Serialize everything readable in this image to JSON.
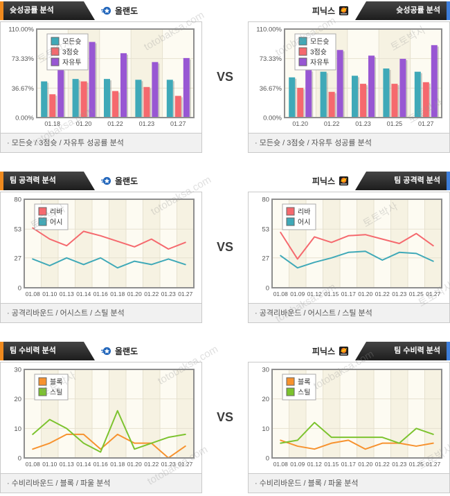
{
  "vs_label": "VS",
  "teams": {
    "left": "올랜도",
    "right": "피닉스"
  },
  "watermarks": [
    "토토박사",
    "totobaksa.com"
  ],
  "colors": {
    "accent_left": "#F08A1E",
    "accent_right": "#3D7EDB",
    "all_shots": "#3FA9B8",
    "three_point": "#F5696E",
    "free_throw": "#9857D3",
    "rebound": "#F5696E",
    "assist": "#3FA9B8",
    "block": "#F7922E",
    "steal": "#7CC32E"
  },
  "rows": [
    {
      "title": "슛성공률 분석",
      "caption": "· 모든슛 / 3점슛 / 자유투 성공률 분석"
    },
    {
      "title": "팀 공격력 분석",
      "caption": "· 공격리바운드 / 어시스트 / 스틸 분석"
    },
    {
      "title": "팀 수비력 분석",
      "caption": "· 수비리바운드 / 블록 / 파울 분석"
    }
  ],
  "chart_data": [
    {
      "type": "bar",
      "title": "올랜도 슛성공률 분석",
      "categories": [
        "01.18",
        "01.20",
        "01.22",
        "01.23",
        "01.27"
      ],
      "series": [
        {
          "name": "모든슛",
          "color": "#3FA9B8",
          "values": [
            45,
            48,
            48,
            47,
            47
          ]
        },
        {
          "name": "3점슛",
          "color": "#F5696E",
          "values": [
            29,
            45,
            33,
            38,
            27
          ]
        },
        {
          "name": "자유투",
          "color": "#9857D3",
          "values": [
            60,
            94,
            80,
            69,
            74
          ]
        }
      ],
      "ylim": [
        0,
        110
      ],
      "yticks": [
        0,
        36.67,
        73.33,
        110
      ],
      "yticklabels": [
        "0.00%",
        "36.67%",
        "73.33%",
        "110.00%"
      ],
      "legend_position": "top-left",
      "grid": true
    },
    {
      "type": "bar",
      "title": "피닉스 슛성공률 분석",
      "categories": [
        "01.20",
        "01.22",
        "01.23",
        "01.25",
        "01.27"
      ],
      "series": [
        {
          "name": "모든슛",
          "color": "#3FA9B8",
          "values": [
            50,
            57,
            52,
            61,
            57
          ]
        },
        {
          "name": "3점슛",
          "color": "#F5696E",
          "values": [
            37,
            32,
            42,
            42,
            44
          ]
        },
        {
          "name": "자유투",
          "color": "#9857D3",
          "values": [
            59,
            84,
            77,
            73,
            90
          ]
        }
      ],
      "ylim": [
        0,
        110
      ],
      "yticks": [
        0,
        36.67,
        73.33,
        110
      ],
      "yticklabels": [
        "0.00%",
        "36.67%",
        "73.33%",
        "110.00%"
      ],
      "legend_position": "top-left",
      "grid": true
    },
    {
      "type": "line",
      "title": "올랜도 팀 공격력 분석",
      "categories": [
        "01.08",
        "01.10",
        "01.13",
        "01.14",
        "01.16",
        "01.18",
        "01.20",
        "01.22",
        "01.23",
        "01.27"
      ],
      "series": [
        {
          "name": "리바",
          "color": "#F5696E",
          "values": [
            54,
            44,
            38,
            51,
            47,
            42,
            37,
            44,
            35,
            41
          ]
        },
        {
          "name": "어시",
          "color": "#3FA9B8",
          "values": [
            26,
            20,
            27,
            21,
            27,
            18,
            24,
            21,
            26,
            21
          ]
        }
      ],
      "ylim": [
        0,
        80
      ],
      "yticks": [
        0,
        27,
        53,
        80
      ],
      "yticklabels": [
        "0",
        "27",
        "53",
        "80"
      ],
      "legend_position": "top-left",
      "grid": true
    },
    {
      "type": "line",
      "title": "피닉스 팀 공격력 분석",
      "categories": [
        "01.08",
        "01.09",
        "01.12",
        "01.15",
        "01.17",
        "01.20",
        "01.22",
        "01.23",
        "01.25",
        "01.27"
      ],
      "series": [
        {
          "name": "리바",
          "color": "#F5696E",
          "values": [
            50,
            26,
            46,
            41,
            47,
            48,
            44,
            40,
            49,
            38
          ]
        },
        {
          "name": "어시",
          "color": "#3FA9B8",
          "values": [
            29,
            18,
            23,
            27,
            32,
            33,
            25,
            32,
            31,
            24
          ]
        }
      ],
      "ylim": [
        0,
        80
      ],
      "yticks": [
        0,
        27,
        53,
        80
      ],
      "yticklabels": [
        "0",
        "27",
        "53",
        "80"
      ],
      "legend_position": "top-left",
      "grid": true
    },
    {
      "type": "line",
      "title": "올랜도 팀 수비력 분석",
      "categories": [
        "01.08",
        "01.10",
        "01.13",
        "01.14",
        "01.16",
        "01.18",
        "01.20",
        "01.22",
        "01.23",
        "01.27"
      ],
      "series": [
        {
          "name": "블록",
          "color": "#F7922E",
          "values": [
            3,
            5,
            8,
            8,
            3,
            8,
            5,
            5,
            0,
            4
          ]
        },
        {
          "name": "스틸",
          "color": "#7CC32E",
          "values": [
            8,
            13,
            10,
            5,
            2,
            16,
            3,
            5,
            7,
            8
          ]
        }
      ],
      "ylim": [
        0,
        30
      ],
      "yticks": [
        0,
        10,
        20,
        30
      ],
      "yticklabels": [
        "0",
        "10",
        "20",
        "30"
      ],
      "legend_position": "top-left",
      "grid": true
    },
    {
      "type": "line",
      "title": "피닉스 팀 수비력 분석",
      "categories": [
        "01.08",
        "01.09",
        "01.12",
        "01.15",
        "01.17",
        "01.20",
        "01.22",
        "01.23",
        "01.25",
        "01.27"
      ],
      "series": [
        {
          "name": "블록",
          "color": "#F7922E",
          "values": [
            6,
            4,
            3,
            5,
            6,
            3,
            5,
            5,
            4,
            5
          ]
        },
        {
          "name": "스틸",
          "color": "#7CC32E",
          "values": [
            5,
            6,
            12,
            7,
            7,
            7,
            7,
            5,
            10,
            8
          ]
        }
      ],
      "ylim": [
        0,
        30
      ],
      "yticks": [
        0,
        10,
        20,
        30
      ],
      "yticklabels": [
        "0",
        "10",
        "20",
        "30"
      ],
      "legend_position": "top-left",
      "grid": true
    }
  ]
}
